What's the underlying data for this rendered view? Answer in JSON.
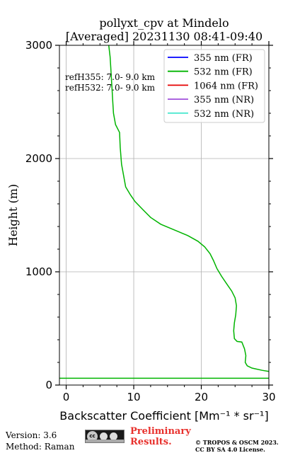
{
  "chart_data": {
    "type": "line",
    "title": "pollyxt_cpv at Mindelo",
    "subtitle": "[Averaged] 20231130 08:41-09:40",
    "xlabel_prefix": "Backscatter Coefficient ",
    "xlabel_unit": "[Mm⁻¹ * sr⁻¹]",
    "ylabel": "Height (m)",
    "xlim": [
      -1,
      30
    ],
    "ylim": [
      0,
      3000
    ],
    "xticks": [
      0,
      10,
      20,
      30
    ],
    "yticks": [
      0,
      1000,
      2000,
      3000
    ],
    "grid": true,
    "legend_position": "top-right",
    "annotations": [
      "refH355:  7.0- 9.0 km",
      "refH532:  7.0- 9.0 km"
    ],
    "series": [
      {
        "name": "355 nm (FR)",
        "color": "#0000ff",
        "points": []
      },
      {
        "name": "532 nm (FR)",
        "color": "#00b400",
        "points": [
          [
            6.3,
            3000
          ],
          [
            6.5,
            2900
          ],
          [
            6.6,
            2800
          ],
          [
            6.7,
            2700
          ],
          [
            6.8,
            2600
          ],
          [
            6.9,
            2500
          ],
          [
            7.0,
            2400
          ],
          [
            7.3,
            2300
          ],
          [
            7.9,
            2230
          ],
          [
            8.0,
            2100
          ],
          [
            8.2,
            1950
          ],
          [
            8.5,
            1850
          ],
          [
            8.8,
            1750
          ],
          [
            9.5,
            1680
          ],
          [
            10.2,
            1620
          ],
          [
            11.5,
            1540
          ],
          [
            12.5,
            1480
          ],
          [
            14.0,
            1420
          ],
          [
            16.0,
            1370
          ],
          [
            18.0,
            1320
          ],
          [
            19.5,
            1270
          ],
          [
            20.5,
            1220
          ],
          [
            21.3,
            1160
          ],
          [
            21.8,
            1100
          ],
          [
            22.3,
            1030
          ],
          [
            23.0,
            960
          ],
          [
            23.8,
            890
          ],
          [
            24.5,
            830
          ],
          [
            25.0,
            770
          ],
          [
            25.2,
            700
          ],
          [
            25.1,
            620
          ],
          [
            24.9,
            550
          ],
          [
            24.8,
            480
          ],
          [
            24.9,
            410
          ],
          [
            25.3,
            385
          ],
          [
            26.0,
            380
          ],
          [
            26.4,
            320
          ],
          [
            26.6,
            260
          ],
          [
            26.5,
            200
          ],
          [
            26.8,
            170
          ],
          [
            27.5,
            150
          ],
          [
            29.0,
            130
          ],
          [
            30.0,
            120
          ]
        ]
      },
      {
        "name": "1064 nm (FR)",
        "color": "#e60000",
        "points": []
      },
      {
        "name": "355 nm (NR)",
        "color": "#a050dc",
        "points": []
      },
      {
        "name": "532 nm (NR)",
        "color": "#4ee8d0",
        "points": []
      }
    ],
    "horizontal_lines": [
      {
        "color": "#00b400",
        "y": 60
      }
    ]
  },
  "footer": {
    "version": "Version: 3.6",
    "method": "Method: Raman",
    "preliminary_line1": "Preliminary",
    "preliminary_line2": "Results.",
    "copyright_line1": "© TROPOS & OSCM 2023.",
    "copyright_line2": "CC BY SA 4.0 License."
  }
}
